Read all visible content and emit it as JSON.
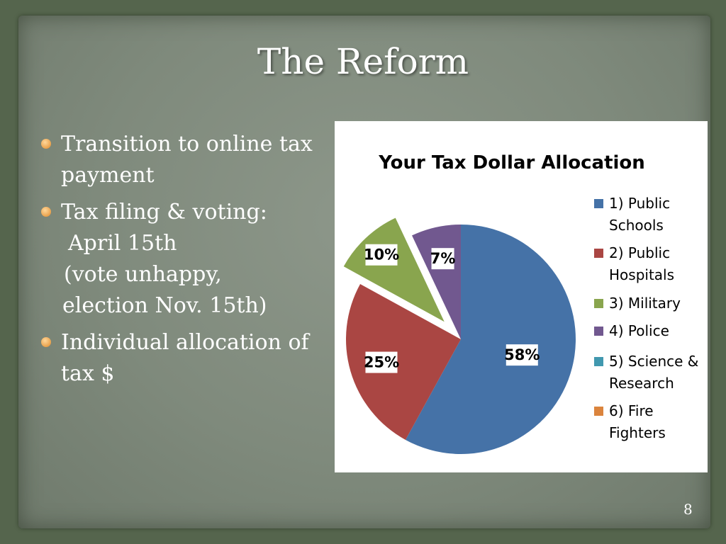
{
  "slide": {
    "title": "The Reform",
    "bullets": [
      {
        "lines": [
          "Transition to online tax",
          "payment"
        ]
      },
      {
        "lines": [
          "Tax filing & voting:",
          " April 15th",
          " (vote unhappy,",
          " election Nov. 15th)"
        ]
      },
      {
        "lines": [
          "Individual allocation of",
          "tax $"
        ]
      }
    ],
    "page_number": "8"
  },
  "chart_data": {
    "type": "pie",
    "title": "Your Tax Dollar Allocation",
    "series": [
      {
        "name": "1) Public Schools",
        "legend_lines": [
          "1) Public",
          "Schools"
        ],
        "value": 58,
        "label": "58%",
        "color": "#4572a7",
        "exploded": false
      },
      {
        "name": "2) Public Hospitals",
        "legend_lines": [
          "2) Public",
          "Hospitals"
        ],
        "value": 25,
        "label": "25%",
        "color": "#aa4643",
        "exploded": false
      },
      {
        "name": "3) Military",
        "legend_lines": [
          "3) Military"
        ],
        "value": 10,
        "label": "10%",
        "color": "#89a54e",
        "exploded": true
      },
      {
        "name": "4) Police",
        "legend_lines": [
          "4) Police"
        ],
        "value": 7,
        "label": "7%",
        "color": "#71588f",
        "exploded": false
      },
      {
        "name": "5) Science & Research",
        "legend_lines": [
          "5) Science &",
          "Research"
        ],
        "value": 0,
        "label": "",
        "color": "#4198af",
        "exploded": false
      },
      {
        "name": "6) Fire Fighters",
        "legend_lines": [
          "6) Fire",
          "Fighters"
        ],
        "value": 0,
        "label": "",
        "color": "#db843d",
        "exploded": false
      }
    ],
    "legend_position": "right"
  }
}
